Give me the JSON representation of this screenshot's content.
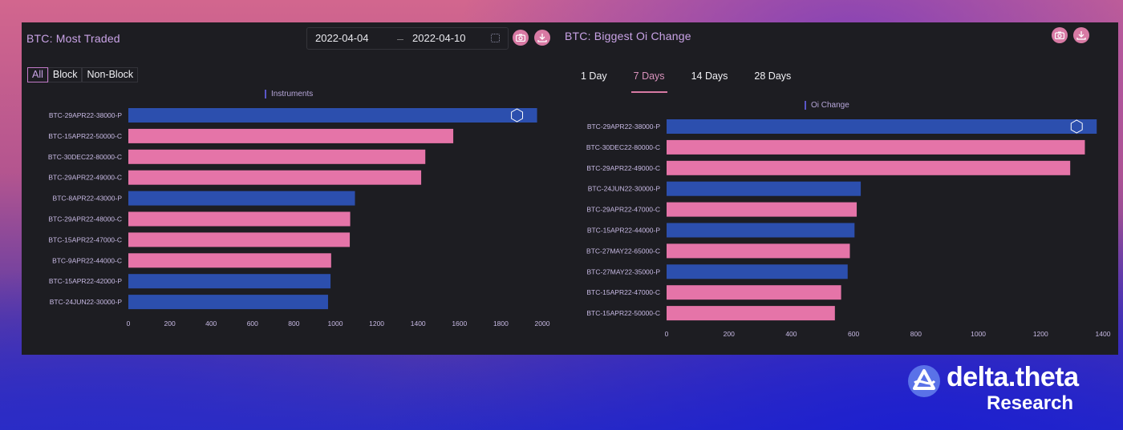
{
  "left_panel": {
    "title": "BTC: Most Traded",
    "date_start": "2022-04-04",
    "date_end": "2022-04-10",
    "filters": [
      "All",
      "Block",
      "Non-Block"
    ],
    "active_filter": "All",
    "legend": "Instruments"
  },
  "right_panel": {
    "title": "BTC: Biggest Oi Change",
    "tabs": [
      "1 Day",
      "7 Days",
      "14 Days",
      "28 Days"
    ],
    "active_tab": "7 Days",
    "legend": "Oi Change"
  },
  "brand": {
    "name": "delta.theta",
    "sub": "Research"
  },
  "colors": {
    "blue": "#2c4fae",
    "pink": "#e574a8",
    "accent": "#d87aa4"
  },
  "icons": [
    "camera-icon",
    "download-icon",
    "calendar-icon",
    "logo-icon"
  ],
  "chart_data": [
    {
      "type": "bar",
      "orientation": "horizontal",
      "legend": "Instruments",
      "categories": [
        "BTC-29APR22-38000-P",
        "BTC-15APR22-50000-C",
        "BTC-30DEC22-80000-C",
        "BTC-29APR22-49000-C",
        "BTC-8APR22-43000-P",
        "BTC-29APR22-48000-C",
        "BTC-15APR22-47000-C",
        "BTC-9APR22-44000-C",
        "BTC-15APR22-42000-P",
        "BTC-24JUN22-30000-P"
      ],
      "values": [
        1975,
        1570,
        1435,
        1415,
        1095,
        1072,
        1070,
        980,
        977,
        965
      ],
      "bar_colors": [
        "#2c4fae",
        "#e574a8",
        "#e574a8",
        "#e574a8",
        "#2c4fae",
        "#e574a8",
        "#e574a8",
        "#e574a8",
        "#2c4fae",
        "#2c4fae"
      ],
      "xlim": [
        0,
        2000
      ],
      "xticks": [
        "0",
        "200",
        "400",
        "600",
        "800",
        "1000",
        "1200",
        "1400",
        "1600",
        "1800",
        "2000"
      ]
    },
    {
      "type": "bar",
      "orientation": "horizontal",
      "legend": "Oi Change",
      "categories": [
        "BTC-29APR22-38000-P",
        "BTC-30DEC22-80000-C",
        "BTC-29APR22-49000-C",
        "BTC-24JUN22-30000-P",
        "BTC-29APR22-47000-C",
        "BTC-15APR22-44000-P",
        "BTC-27MAY22-65000-C",
        "BTC-27MAY22-35000-P",
        "BTC-15APR22-47000-C",
        "BTC-15APR22-50000-C"
      ],
      "values": [
        1380,
        1342,
        1295,
        623,
        610,
        603,
        588,
        581,
        560,
        540
      ],
      "bar_colors": [
        "#2c4fae",
        "#e574a8",
        "#e574a8",
        "#2c4fae",
        "#e574a8",
        "#2c4fae",
        "#e574a8",
        "#2c4fae",
        "#e574a8",
        "#e574a8"
      ],
      "xlim": [
        0,
        1400
      ],
      "xticks": [
        "0",
        "200",
        "400",
        "600",
        "800",
        "1000",
        "1200",
        "1400"
      ]
    }
  ]
}
